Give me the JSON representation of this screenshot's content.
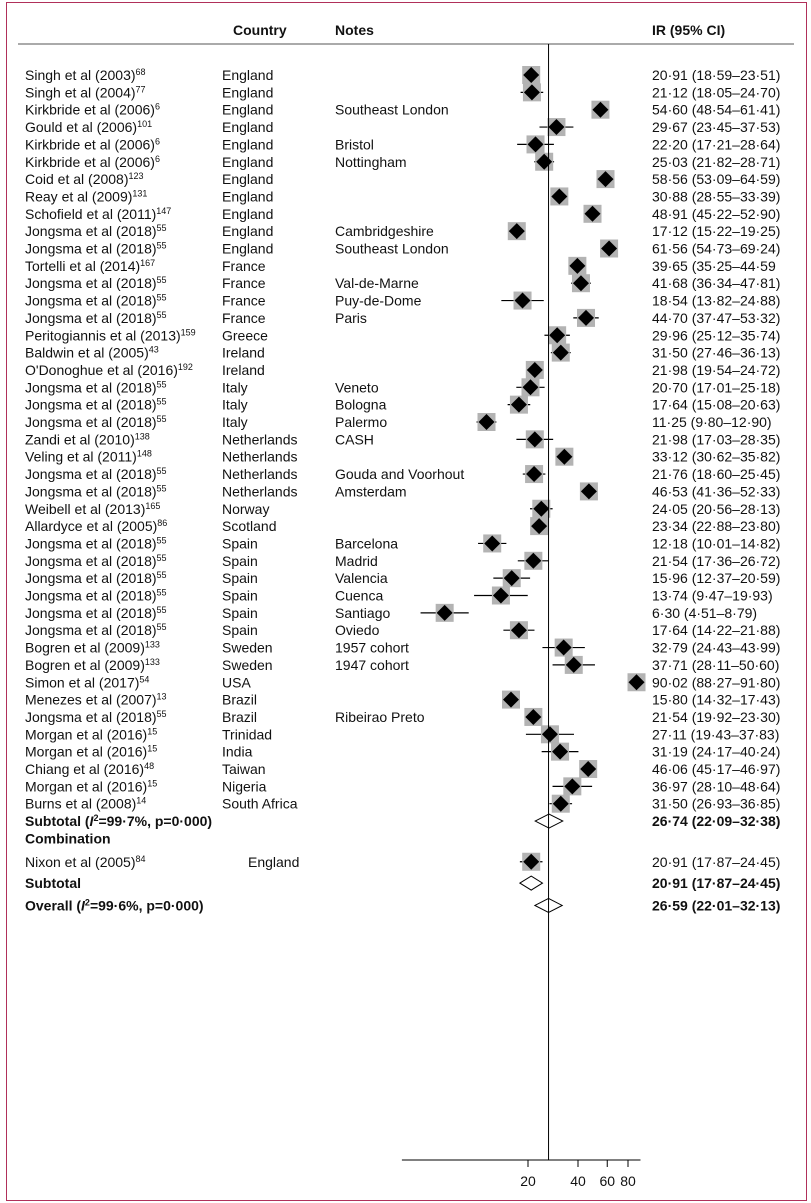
{
  "headers": {
    "country": "Country",
    "notes": "Notes",
    "ir": "IR (95% CI)"
  },
  "chart_data": {
    "type": "forest",
    "x_ticks": [
      20,
      40,
      60,
      80
    ],
    "xlim": [
      4,
      90
    ],
    "x_scale": "log",
    "reference_line": 26.59,
    "rows": [
      {
        "study": "Singh et al (2003)",
        "ref": "68",
        "country": "England",
        "notes": "",
        "est": 20.91,
        "lo": 18.59,
        "hi": 23.51,
        "ci": "20·91 (18·59–23·51)"
      },
      {
        "study": "Singh et al (2004)",
        "ref": "77",
        "country": "England",
        "notes": "",
        "est": 21.12,
        "lo": 18.05,
        "hi": 24.7,
        "ci": "21·12 (18·05–24·70)"
      },
      {
        "study": "Kirkbride et al (2006)",
        "ref": "6",
        "country": "England",
        "notes": "Southeast London",
        "est": 54.6,
        "lo": 48.54,
        "hi": 61.41,
        "ci": "54·60 (48·54–61·41)"
      },
      {
        "study": "Gould et al (2006)",
        "ref": "101",
        "country": "England",
        "notes": "",
        "est": 29.67,
        "lo": 23.45,
        "hi": 37.53,
        "ci": "29·67 (23·45–37·53)"
      },
      {
        "study": "Kirkbride et al (2006)",
        "ref": "6",
        "country": "England",
        "notes": "Bristol",
        "est": 22.2,
        "lo": 17.21,
        "hi": 28.64,
        "ci": "22·20 (17·21–28·64)"
      },
      {
        "study": "Kirkbride et al (2006)",
        "ref": "6",
        "country": "England",
        "notes": "Nottingham",
        "est": 25.03,
        "lo": 21.82,
        "hi": 28.71,
        "ci": "25·03 (21·82–28·71)"
      },
      {
        "study": "Coid et al (2008)",
        "ref": "123",
        "country": "England",
        "notes": "",
        "est": 58.56,
        "lo": 53.09,
        "hi": 64.59,
        "ci": "58·56 (53·09–64·59)"
      },
      {
        "study": "Reay et al (2009)",
        "ref": "131",
        "country": "England",
        "notes": "",
        "est": 30.88,
        "lo": 28.55,
        "hi": 33.39,
        "ci": "30·88 (28·55–33·39)"
      },
      {
        "study": "Schofield et al (2011)",
        "ref": "147",
        "country": "England",
        "notes": "",
        "est": 48.91,
        "lo": 45.22,
        "hi": 52.9,
        "ci": "48·91 (45·22–52·90)"
      },
      {
        "study": "Jongsma et al (2018)",
        "ref": "55",
        "country": "England",
        "notes": "Cambridgeshire",
        "est": 17.12,
        "lo": 15.22,
        "hi": 19.25,
        "ci": "17·12 (15·22–19·25)"
      },
      {
        "study": "Jongsma et al (2018)",
        "ref": "55",
        "country": "England",
        "notes": "Southeast London",
        "est": 61.56,
        "lo": 54.73,
        "hi": 69.24,
        "ci": "61·56 (54·73–69·24)"
      },
      {
        "study": "Tortelli et al (2014)",
        "ref": "167",
        "country": "France",
        "notes": "",
        "est": 39.65,
        "lo": 35.25,
        "hi": 44.59,
        "ci": "39·65 (35·25–44·59"
      },
      {
        "study": "Jongsma et al (2018)",
        "ref": "55",
        "country": "France",
        "notes": "Val-de-Marne",
        "est": 41.68,
        "lo": 36.34,
        "hi": 47.81,
        "ci": "41·68 (36·34–47·81)"
      },
      {
        "study": "Jongsma et al (2018)",
        "ref": "55",
        "country": "France",
        "notes": "Puy-de-Dome",
        "est": 18.54,
        "lo": 13.82,
        "hi": 24.88,
        "ci": "18·54 (13·82–24·88)"
      },
      {
        "study": "Jongsma et al (2018)",
        "ref": "55",
        "country": "France",
        "notes": "Paris",
        "est": 44.7,
        "lo": 37.47,
        "hi": 53.32,
        "ci": "44·70 (37·47–53·32)"
      },
      {
        "study": "Peritogiannis et al (2013)",
        "ref": "159",
        "country": "Greece",
        "notes": "",
        "est": 29.96,
        "lo": 25.12,
        "hi": 35.74,
        "ci": "29·96 (25·12–35·74)"
      },
      {
        "study": "Baldwin et al (2005)",
        "ref": "43",
        "country": "Ireland",
        "notes": "",
        "est": 31.5,
        "lo": 27.46,
        "hi": 36.13,
        "ci": "31·50 (27·46–36·13)"
      },
      {
        "study": "O'Donoghue et al (2016)",
        "ref": "192",
        "country": "Ireland",
        "notes": "",
        "est": 21.98,
        "lo": 19.54,
        "hi": 24.72,
        "ci": "21·98 (19·54–24·72)"
      },
      {
        "study": "Jongsma et al (2018)",
        "ref": "55",
        "country": "Italy",
        "notes": "Veneto",
        "est": 20.7,
        "lo": 17.01,
        "hi": 25.18,
        "ci": "20·70 (17·01–25·18)"
      },
      {
        "study": "Jongsma et al (2018)",
        "ref": "55",
        "country": "Italy",
        "notes": "Bologna",
        "est": 17.64,
        "lo": 15.08,
        "hi": 20.63,
        "ci": "17·64 (15·08–20·63)"
      },
      {
        "study": "Jongsma et al (2018)",
        "ref": "55",
        "country": "Italy",
        "notes": "Palermo",
        "est": 11.25,
        "lo": 9.8,
        "hi": 12.9,
        "ci": "11·25 (9·80–12·90)"
      },
      {
        "study": "Zandi et al (2010)",
        "ref": "138",
        "country": "Netherlands",
        "notes": "CASH",
        "est": 21.98,
        "lo": 17.03,
        "hi": 28.35,
        "ci": "21·98 (17·03–28·35)"
      },
      {
        "study": "Veling et al (2011)",
        "ref": "148",
        "country": "Netherlands",
        "notes": "",
        "est": 33.12,
        "lo": 30.62,
        "hi": 35.82,
        "ci": "33·12 (30·62–35·82)"
      },
      {
        "study": "Jongsma et al (2018)",
        "ref": "55",
        "country": "Netherlands",
        "notes": "Gouda and Voorhout",
        "est": 21.76,
        "lo": 18.6,
        "hi": 25.45,
        "ci": "21·76 (18·60–25·45)"
      },
      {
        "study": "Jongsma et al (2018)",
        "ref": "55",
        "country": "Netherlands",
        "notes": "Amsterdam",
        "est": 46.53,
        "lo": 41.36,
        "hi": 52.33,
        "ci": "46·53 (41·36–52·33)"
      },
      {
        "study": "Weibell et al (2013)",
        "ref": "165",
        "country": "Norway",
        "notes": "",
        "est": 24.05,
        "lo": 20.56,
        "hi": 28.13,
        "ci": "24·05 (20·56–28·13)"
      },
      {
        "study": "Allardyce et al (2005)",
        "ref": "86",
        "country": "Scotland",
        "notes": "",
        "est": 23.34,
        "lo": 22.88,
        "hi": 23.8,
        "ci": "23·34 (22·88–23·80)"
      },
      {
        "study": "Jongsma et al (2018)",
        "ref": "55",
        "country": "Spain",
        "notes": "Barcelona",
        "est": 12.18,
        "lo": 10.01,
        "hi": 14.82,
        "ci": "12·18 (10·01–14·82)"
      },
      {
        "study": "Jongsma et al (2018)",
        "ref": "55",
        "country": "Spain",
        "notes": "Madrid",
        "est": 21.54,
        "lo": 17.36,
        "hi": 26.72,
        "ci": "21·54 (17·36–26·72)"
      },
      {
        "study": "Jongsma et al (2018)",
        "ref": "55",
        "country": "Spain",
        "notes": "Valencia",
        "est": 15.96,
        "lo": 12.37,
        "hi": 20.59,
        "ci": "15·96 (12·37–20·59)"
      },
      {
        "study": "Jongsma et al (2018)",
        "ref": "55",
        "country": "Spain",
        "notes": "Cuenca",
        "est": 13.74,
        "lo": 9.47,
        "hi": 19.93,
        "ci": "13·74 (9·47–19·93)"
      },
      {
        "study": "Jongsma et al (2018)",
        "ref": "55",
        "country": "Spain",
        "notes": "Santiago",
        "est": 6.3,
        "lo": 4.51,
        "hi": 8.79,
        "ci": "6·30 (4·51–8·79)"
      },
      {
        "study": "Jongsma et al (2018)",
        "ref": "55",
        "country": "Spain",
        "notes": "Oviedo",
        "est": 17.64,
        "lo": 14.22,
        "hi": 21.88,
        "ci": "17·64 (14·22–21·88)"
      },
      {
        "study": "Bogren et al (2009)",
        "ref": "133",
        "country": "Sweden",
        "notes": "1957 cohort",
        "est": 32.79,
        "lo": 24.43,
        "hi": 43.99,
        "ci": "32·79 (24·43–43·99)"
      },
      {
        "study": "Bogren et al (2009)",
        "ref": "133",
        "country": "Sweden",
        "notes": "1947 cohort",
        "est": 37.71,
        "lo": 28.11,
        "hi": 50.6,
        "ci": "37·71 (28·11–50·60)"
      },
      {
        "study": "Simon et al (2017)",
        "ref": "54",
        "country": "USA",
        "notes": "",
        "est": 90.02,
        "lo": 88.27,
        "hi": 91.8,
        "ci": "90·02 (88·27–91·80)"
      },
      {
        "study": "Menezes et al (2007)",
        "ref": "13",
        "country": "Brazil",
        "notes": "",
        "est": 15.8,
        "lo": 14.32,
        "hi": 17.43,
        "ci": "15·80 (14·32–17·43)"
      },
      {
        "study": "Jongsma et al (2018)",
        "ref": "55",
        "country": "Brazil",
        "notes": "Ribeirao Preto",
        "est": 21.54,
        "lo": 19.92,
        "hi": 23.3,
        "ci": "21·54 (19·92–23·30)"
      },
      {
        "study": "Morgan et al (2016)",
        "ref": "15",
        "country": "Trinidad",
        "notes": "",
        "est": 27.11,
        "lo": 19.43,
        "hi": 37.83,
        "ci": "27·11 (19·43–37·83)"
      },
      {
        "study": "Morgan et al (2016)",
        "ref": "15",
        "country": "India",
        "notes": "",
        "est": 31.19,
        "lo": 24.17,
        "hi": 40.24,
        "ci": "31·19 (24·17–40·24)"
      },
      {
        "study": "Chiang et al (2016)",
        "ref": "48",
        "country": "Taiwan",
        "notes": "",
        "est": 46.06,
        "lo": 45.17,
        "hi": 46.97,
        "ci": "46·06 (45·17–46·97)"
      },
      {
        "study": "Morgan et al (2016)",
        "ref": "15",
        "country": "Nigeria",
        "notes": "",
        "est": 36.97,
        "lo": 28.1,
        "hi": 48.64,
        "ci": "36·97 (28·10–48·64)"
      },
      {
        "study": "Burns et al (2008)",
        "ref": "14",
        "country": "South Africa",
        "notes": "",
        "est": 31.5,
        "lo": 26.93,
        "hi": 36.85,
        "ci": "31·50 (26·93–36·85)"
      }
    ],
    "subtotal1": {
      "label_pre": "Subtotal  (",
      "label_i": "I",
      "label_sup": "2",
      "label_post": "=99·7%, p=0·000)",
      "est": 26.74,
      "lo": 22.09,
      "hi": 32.38,
      "ci": "26·74 (22·09–32·38)"
    },
    "combination_label": "Combination",
    "combination_rows": [
      {
        "study": "Nixon et al (2005)",
        "ref": "84",
        "country": "England",
        "notes": "",
        "est": 20.91,
        "lo": 17.87,
        "hi": 24.45,
        "ci": "20·91 (17·87–24·45)"
      }
    ],
    "subtotal2": {
      "label": "Subtotal",
      "est": 20.91,
      "lo": 17.87,
      "hi": 24.45,
      "ci": "20·91 (17·87–24·45)"
    },
    "overall": {
      "label_pre": "Overall (",
      "label_i": "I",
      "label_sup": "2",
      "label_post": "=99·6%, p=0·000)",
      "est": 26.59,
      "lo": 22.01,
      "hi": 32.13,
      "ci": "26·59 (22·01–32·13)"
    }
  }
}
